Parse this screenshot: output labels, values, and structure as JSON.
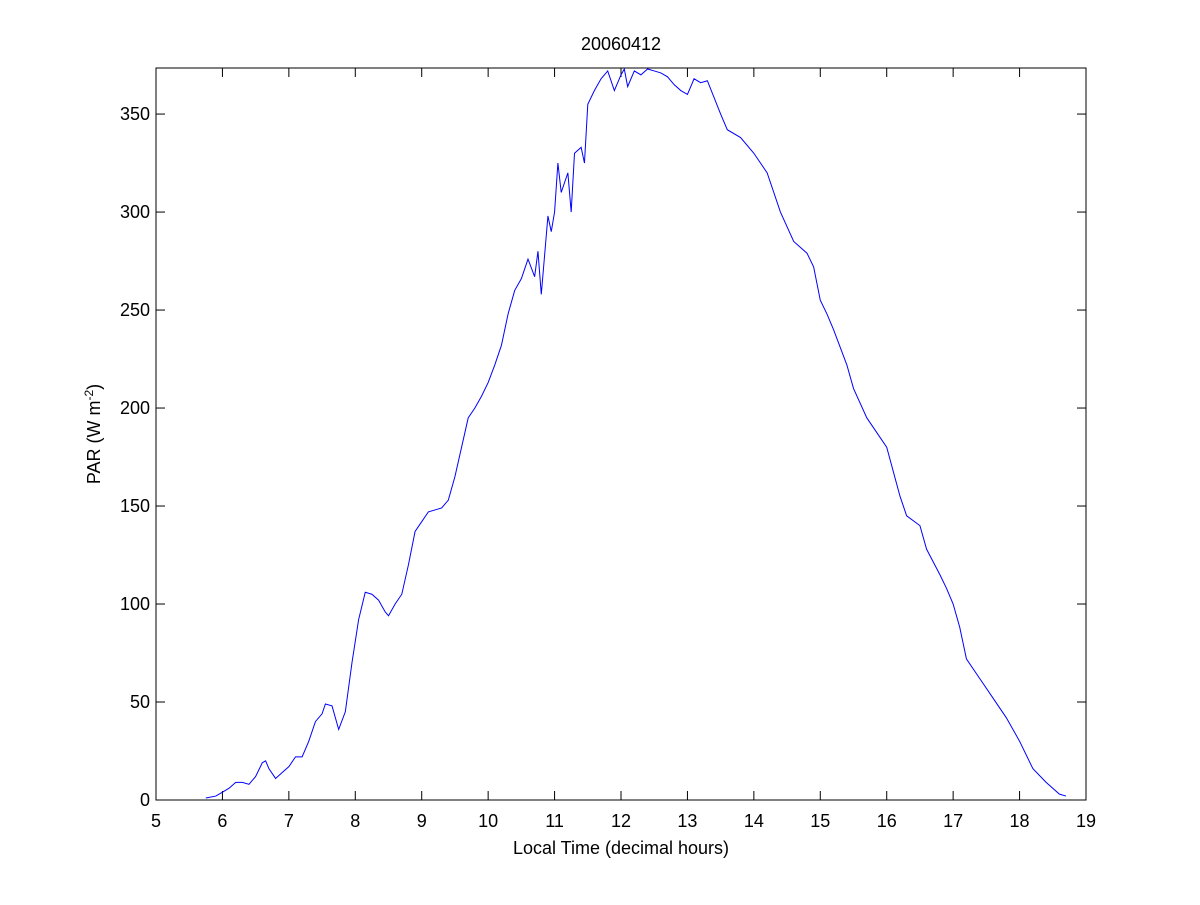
{
  "chart_data": {
    "type": "line",
    "title": "20060412",
    "xlabel": "Local Time (decimal hours)",
    "ylabel": {
      "text": "PAR (W m",
      "superscript": "-2",
      "suffix": ")"
    },
    "xlim": [
      5,
      19
    ],
    "xticks": [
      5,
      6,
      7,
      8,
      9,
      10,
      11,
      12,
      13,
      14,
      15,
      16,
      17,
      18,
      19
    ],
    "ylim": [
      0,
      373.5
    ],
    "yticks": [
      0,
      50,
      100,
      150,
      200,
      250,
      300,
      350
    ],
    "grid": false,
    "series": [
      {
        "color": "#0000ff",
        "x": [
          5.75,
          5.9,
          6.0,
          6.1,
          6.2,
          6.3,
          6.4,
          6.5,
          6.6,
          6.65,
          6.7,
          6.8,
          6.9,
          7.0,
          7.1,
          7.2,
          7.3,
          7.4,
          7.5,
          7.55,
          7.65,
          7.75,
          7.85,
          7.95,
          8.05,
          8.15,
          8.25,
          8.35,
          8.45,
          8.5,
          8.6,
          8.7,
          8.8,
          8.9,
          9.0,
          9.1,
          9.2,
          9.3,
          9.4,
          9.5,
          9.6,
          9.7,
          9.8,
          9.9,
          10.0,
          10.1,
          10.2,
          10.3,
          10.4,
          10.5,
          10.6,
          10.7,
          10.75,
          10.8,
          10.9,
          10.95,
          11.0,
          11.05,
          11.1,
          11.2,
          11.25,
          11.3,
          11.4,
          11.45,
          11.5,
          11.6,
          11.7,
          11.8,
          11.9,
          12.0,
          12.05,
          12.1,
          12.2,
          12.3,
          12.4,
          12.5,
          12.6,
          12.7,
          12.8,
          12.9,
          13.0,
          13.1,
          13.2,
          13.3,
          13.5,
          13.6,
          13.8,
          14.0,
          14.2,
          14.4,
          14.6,
          14.8,
          14.9,
          15.0,
          15.1,
          15.2,
          15.4,
          15.5,
          15.7,
          15.9,
          16.0,
          16.2,
          16.3,
          16.5,
          16.6,
          16.8,
          16.9,
          17.0,
          17.1,
          17.2,
          17.4,
          17.6,
          17.8,
          18.0,
          18.2,
          18.4,
          18.6,
          18.7
        ],
        "values": [
          1,
          2,
          4,
          6,
          9,
          9,
          8,
          12,
          19,
          20,
          16,
          11,
          14,
          17,
          22,
          22,
          30,
          40,
          44,
          49,
          48,
          36,
          45,
          70,
          92,
          106,
          105,
          102,
          96,
          94,
          100,
          105,
          120,
          137,
          142,
          147,
          148,
          149,
          153,
          165,
          180,
          195,
          200,
          206,
          213,
          222,
          232,
          248,
          260,
          266,
          276,
          267,
          280,
          258,
          298,
          290,
          300,
          325,
          310,
          320,
          300,
          330,
          333,
          325,
          355,
          362,
          368,
          372,
          362,
          370,
          373,
          364,
          372,
          370,
          373,
          372,
          371,
          369,
          365,
          362,
          360,
          368,
          366,
          367,
          350,
          342,
          338,
          330,
          320,
          300,
          285,
          279,
          272,
          255,
          248,
          240,
          222,
          210,
          195,
          185,
          180,
          155,
          145,
          140,
          128,
          115,
          108,
          100,
          88,
          72,
          62,
          52,
          42,
          30,
          16,
          9,
          3,
          2
        ]
      }
    ]
  }
}
